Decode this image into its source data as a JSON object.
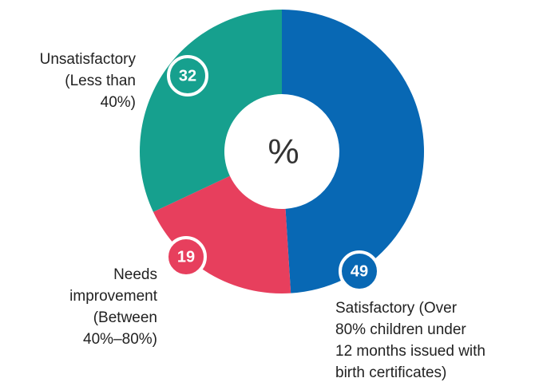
{
  "chart_data": {
    "type": "donut",
    "center_label": "%",
    "categories": [
      "Satisfactory (Over\n80% children under\n12 months issued with\nbirth certificates)",
      "Needs\nimprovement\n(Between\n40%–80%)",
      "Unsatisfactory\n(Less than\n40%)"
    ],
    "values": [
      49,
      19,
      32
    ],
    "colors": [
      "#0868b4",
      "#e73f5d",
      "#16a08e"
    ]
  }
}
